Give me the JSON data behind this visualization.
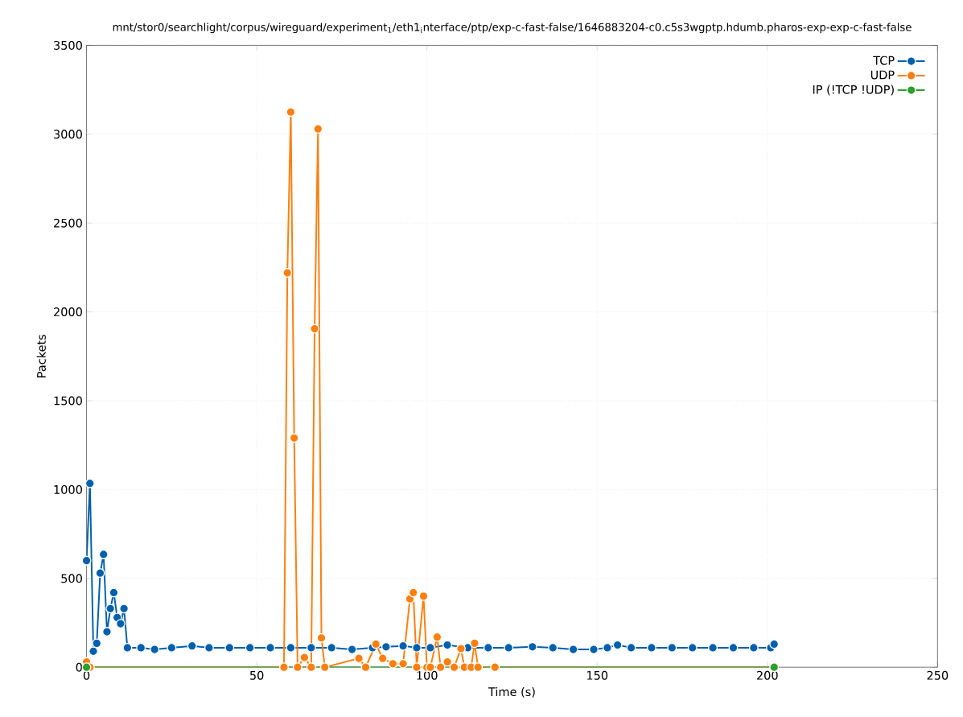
{
  "chart_data": {
    "type": "line",
    "title": "mnt/stor0/searchlight/corpus/wireguard/experiment$_{1}$/eth1$_{i}$nterface/ptp/exp-c-fast-false/1646883204-c0.c5s3wgptp.hdumb.pharos-exp-exp-c-fast-false",
    "xlabel": "Time (s)",
    "ylabel": "Packets",
    "xlim": [
      0,
      250
    ],
    "ylim": [
      0,
      3500
    ],
    "xticks": [
      0,
      50,
      100,
      150,
      200,
      250
    ],
    "yticks": [
      0,
      500,
      1000,
      1500,
      2000,
      2500,
      3000,
      3500
    ],
    "grid": true,
    "legend": "top right",
    "marker": "circle",
    "line_style": "solid",
    "series": [
      {
        "name": "TCP",
        "color": "#0060ad",
        "x": [
          0,
          1,
          2,
          3,
          4,
          5,
          6,
          7,
          8,
          9,
          10,
          11,
          12,
          16,
          20,
          25,
          31,
          36,
          42,
          48,
          54,
          60,
          66,
          72,
          78,
          84,
          88,
          93,
          97,
          101,
          106,
          112,
          118,
          124,
          131,
          137,
          143,
          149,
          153,
          156,
          160,
          166,
          172,
          178,
          184,
          190,
          196,
          201,
          202
        ],
        "values": [
          600,
          1035,
          90,
          135,
          530,
          635,
          200,
          330,
          420,
          280,
          245,
          330,
          110,
          110,
          100,
          110,
          120,
          110,
          110,
          110,
          110,
          110,
          110,
          110,
          100,
          110,
          115,
          120,
          110,
          110,
          125,
          110,
          110,
          110,
          115,
          110,
          100,
          100,
          110,
          125,
          110,
          110,
          110,
          110,
          110,
          110,
          110,
          110,
          130
        ]
      },
      {
        "name": "UDP",
        "color": "#ff7f0e",
        "x": [
          0,
          1,
          58,
          59,
          60,
          61,
          62,
          64,
          66,
          67,
          68,
          69,
          70,
          80,
          82,
          85,
          87,
          90,
          93,
          95,
          96,
          97,
          99,
          100,
          101,
          103,
          104,
          106,
          108,
          110,
          111,
          113,
          114,
          115,
          120,
          202
        ],
        "values": [
          30,
          0,
          0,
          2220,
          3125,
          1290,
          0,
          55,
          0,
          1905,
          3030,
          165,
          0,
          50,
          0,
          130,
          50,
          20,
          20,
          385,
          420,
          0,
          400,
          0,
          0,
          170,
          0,
          30,
          0,
          105,
          0,
          0,
          135,
          0,
          0,
          0
        ]
      },
      {
        "name": "IP (!TCP  !UDP)",
        "color": "#2ca02c",
        "x": [
          0,
          202
        ],
        "values": [
          0,
          0
        ]
      }
    ]
  }
}
